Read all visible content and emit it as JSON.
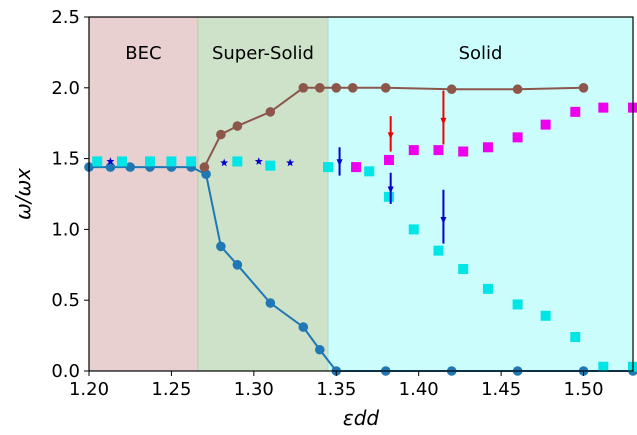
{
  "chart_data": {
    "type": "scatter",
    "xlabel": "εdd",
    "ylabel": "ω/ωx",
    "xlim": [
      1.2,
      1.53
    ],
    "ylim": [
      0.0,
      2.5
    ],
    "xticks": [
      "1.20",
      "1.25",
      "1.30",
      "1.35",
      "1.40",
      "1.45",
      "1.50"
    ],
    "yticks": [
      "0.0",
      "0.5",
      "1.0",
      "1.5",
      "2.0",
      "2.5"
    ],
    "grid": false,
    "legend": "none",
    "regions": [
      {
        "label": "BEC",
        "x0": 1.2,
        "x1": 1.266,
        "color": "#e8d0d0"
      },
      {
        "label": "Super-Solid",
        "x0": 1.266,
        "x1": 1.345,
        "color": "#cde2c9"
      },
      {
        "label": "Solid",
        "x0": 1.345,
        "x1": 1.53,
        "color": "#ccfdfd"
      }
    ],
    "series": [
      {
        "marker": "circle-line",
        "color": "#1f77b4",
        "points": [
          [
            1.2,
            1.44
          ],
          [
            1.213,
            1.44
          ],
          [
            1.225,
            1.44
          ],
          [
            1.237,
            1.44
          ],
          [
            1.25,
            1.44
          ],
          [
            1.262,
            1.44
          ],
          [
            1.271,
            1.39
          ],
          [
            1.28,
            0.88
          ],
          [
            1.29,
            0.75
          ],
          [
            1.31,
            0.48
          ],
          [
            1.33,
            0.31
          ],
          [
            1.34,
            0.15
          ],
          [
            1.35,
            0.0
          ],
          [
            1.38,
            0.0
          ],
          [
            1.42,
            0.0
          ],
          [
            1.46,
            0.0
          ],
          [
            1.5,
            0.0
          ],
          [
            1.53,
            0.0
          ]
        ]
      },
      {
        "marker": "circle-line",
        "color": "#8c564b",
        "points": [
          [
            1.27,
            1.44
          ],
          [
            1.28,
            1.67
          ],
          [
            1.29,
            1.73
          ],
          [
            1.31,
            1.83
          ],
          [
            1.33,
            2.0
          ],
          [
            1.34,
            2.0
          ],
          [
            1.35,
            2.0
          ],
          [
            1.36,
            2.0
          ],
          [
            1.38,
            2.0
          ],
          [
            1.42,
            1.99
          ],
          [
            1.46,
            1.99
          ],
          [
            1.5,
            2.0
          ]
        ]
      },
      {
        "marker": "square",
        "color": "#00e5e5",
        "points": [
          [
            1.205,
            1.48
          ],
          [
            1.22,
            1.48
          ],
          [
            1.237,
            1.48
          ],
          [
            1.25,
            1.48
          ],
          [
            1.262,
            1.48
          ],
          [
            1.29,
            1.48
          ],
          [
            1.31,
            1.45
          ],
          [
            1.345,
            1.44
          ],
          [
            1.37,
            1.41
          ],
          [
            1.382,
            1.23
          ],
          [
            1.397,
            1.0
          ],
          [
            1.412,
            0.85
          ],
          [
            1.427,
            0.72
          ],
          [
            1.442,
            0.58
          ],
          [
            1.46,
            0.47
          ],
          [
            1.477,
            0.39
          ],
          [
            1.495,
            0.24
          ],
          [
            1.512,
            0.03
          ],
          [
            1.53,
            0.03
          ]
        ]
      },
      {
        "marker": "square",
        "color": "#ee00ee",
        "points": [
          [
            1.362,
            1.44
          ],
          [
            1.382,
            1.49
          ],
          [
            1.397,
            1.56
          ],
          [
            1.412,
            1.56
          ],
          [
            1.427,
            1.55
          ],
          [
            1.442,
            1.58
          ],
          [
            1.46,
            1.65
          ],
          [
            1.477,
            1.74
          ],
          [
            1.495,
            1.83
          ],
          [
            1.512,
            1.86
          ],
          [
            1.53,
            1.86
          ]
        ]
      },
      {
        "marker": "star",
        "color": "#0000cc",
        "points": [
          [
            1.213,
            1.48
          ],
          [
            1.282,
            1.47
          ],
          [
            1.303,
            1.48
          ],
          [
            1.322,
            1.47
          ]
        ]
      }
    ],
    "arrows": [
      {
        "color": "#0000cc",
        "x": 1.352,
        "y_top": 1.58,
        "y_bottom": 1.38
      },
      {
        "color": "#0000cc",
        "x": 1.383,
        "y_top": 1.4,
        "y_bottom": 1.18
      },
      {
        "color": "#0000cc",
        "x": 1.415,
        "y_top": 1.28,
        "y_bottom": 0.9
      },
      {
        "color": "#ee0000",
        "x": 1.383,
        "y_top": 1.8,
        "y_bottom": 1.55
      },
      {
        "color": "#ee0000",
        "x": 1.415,
        "y_top": 1.98,
        "y_bottom": 1.6
      }
    ]
  }
}
